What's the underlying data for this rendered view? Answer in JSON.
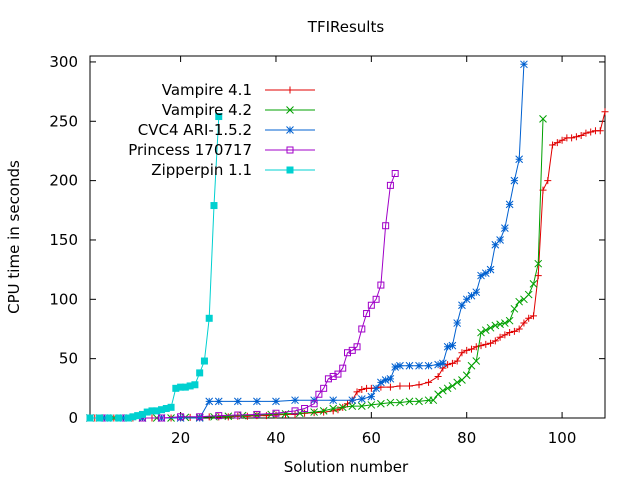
{
  "chart_data": {
    "type": "line",
    "title": "TFIResults",
    "xlabel": "Solution number",
    "ylabel": "CPU time in seconds",
    "xlim": [
      1,
      109
    ],
    "ylim": [
      0,
      305
    ],
    "xticks": [
      20,
      40,
      60,
      80,
      100
    ],
    "yticks": [
      0,
      50,
      100,
      150,
      200,
      250,
      300
    ],
    "xtick_labels": [
      "20",
      "40",
      "60",
      "80",
      "100"
    ],
    "ytick_labels": [
      "0",
      "50",
      "100",
      "150",
      "200",
      "250",
      "300"
    ],
    "legend_position": "top-left",
    "grid": false,
    "series": [
      {
        "name": "Vampire 4.1",
        "color": "#e00000",
        "marker": "plus",
        "points": [
          [
            1,
            0
          ],
          [
            2,
            0
          ],
          [
            4,
            0
          ],
          [
            6,
            0
          ],
          [
            8,
            0
          ],
          [
            10,
            0
          ],
          [
            12,
            0
          ],
          [
            14,
            0
          ],
          [
            16,
            0
          ],
          [
            18,
            0
          ],
          [
            20,
            0.5
          ],
          [
            22,
            0.5
          ],
          [
            24,
            0.5
          ],
          [
            26,
            1
          ],
          [
            28,
            1
          ],
          [
            30,
            1
          ],
          [
            32,
            1.5
          ],
          [
            34,
            1.5
          ],
          [
            36,
            2
          ],
          [
            38,
            2
          ],
          [
            40,
            2.5
          ],
          [
            42,
            3
          ],
          [
            44,
            3
          ],
          [
            46,
            4
          ],
          [
            48,
            4.5
          ],
          [
            50,
            5
          ],
          [
            52,
            6
          ],
          [
            53,
            7
          ],
          [
            54,
            9
          ],
          [
            55,
            12
          ],
          [
            56,
            15
          ],
          [
            57,
            22
          ],
          [
            58,
            24
          ],
          [
            59,
            25
          ],
          [
            60,
            25
          ],
          [
            62,
            26
          ],
          [
            64,
            26
          ],
          [
            66,
            27
          ],
          [
            68,
            27
          ],
          [
            70,
            28
          ],
          [
            72,
            30
          ],
          [
            74,
            35
          ],
          [
            75,
            42
          ],
          [
            76,
            45
          ],
          [
            77,
            46
          ],
          [
            78,
            48
          ],
          [
            79,
            55
          ],
          [
            80,
            57
          ],
          [
            81,
            58
          ],
          [
            82,
            60
          ],
          [
            83,
            61
          ],
          [
            84,
            62
          ],
          [
            85,
            63
          ],
          [
            86,
            65
          ],
          [
            87,
            68
          ],
          [
            88,
            70
          ],
          [
            89,
            72
          ],
          [
            90,
            73
          ],
          [
            91,
            75
          ],
          [
            92,
            80
          ],
          [
            93,
            84
          ],
          [
            94,
            86
          ],
          [
            95,
            120
          ],
          [
            96,
            192
          ],
          [
            97,
            200
          ],
          [
            98,
            230
          ],
          [
            99,
            232
          ],
          [
            100,
            234
          ],
          [
            101,
            236
          ],
          [
            102,
            236
          ],
          [
            103,
            237
          ],
          [
            104,
            238
          ],
          [
            105,
            240
          ],
          [
            106,
            241
          ],
          [
            107,
            242
          ],
          [
            108,
            242
          ],
          [
            109,
            258
          ]
        ]
      },
      {
        "name": "Vampire 4.2",
        "color": "#00a000",
        "marker": "cross",
        "points": [
          [
            1,
            0
          ],
          [
            3,
            0
          ],
          [
            6,
            0
          ],
          [
            9,
            0
          ],
          [
            12,
            0
          ],
          [
            15,
            0
          ],
          [
            18,
            0
          ],
          [
            21,
            0.5
          ],
          [
            24,
            0.5
          ],
          [
            27,
            1
          ],
          [
            30,
            1.5
          ],
          [
            33,
            2
          ],
          [
            36,
            2.5
          ],
          [
            39,
            3
          ],
          [
            42,
            3.5
          ],
          [
            45,
            4
          ],
          [
            48,
            5
          ],
          [
            50,
            6
          ],
          [
            52,
            8
          ],
          [
            54,
            9
          ],
          [
            56,
            10
          ],
          [
            58,
            10
          ],
          [
            60,
            11
          ],
          [
            62,
            12
          ],
          [
            64,
            13
          ],
          [
            66,
            13
          ],
          [
            68,
            14
          ],
          [
            70,
            14
          ],
          [
            72,
            15
          ],
          [
            73,
            15
          ],
          [
            74,
            20
          ],
          [
            75,
            23
          ],
          [
            76,
            25
          ],
          [
            77,
            27
          ],
          [
            78,
            30
          ],
          [
            79,
            32
          ],
          [
            80,
            36
          ],
          [
            81,
            44
          ],
          [
            82,
            48
          ],
          [
            83,
            72
          ],
          [
            84,
            74
          ],
          [
            85,
            76
          ],
          [
            86,
            78
          ],
          [
            87,
            79
          ],
          [
            88,
            80
          ],
          [
            89,
            82
          ],
          [
            90,
            92
          ],
          [
            91,
            98
          ],
          [
            92,
            100
          ],
          [
            93,
            104
          ],
          [
            94,
            113
          ],
          [
            95,
            130
          ],
          [
            96,
            252
          ]
        ]
      },
      {
        "name": "CVC4 ARI-1.5.2",
        "color": "#0060d0",
        "marker": "star",
        "points": [
          [
            1,
            0
          ],
          [
            4,
            0
          ],
          [
            8,
            0
          ],
          [
            12,
            0
          ],
          [
            16,
            0
          ],
          [
            20,
            0
          ],
          [
            24,
            0
          ],
          [
            26,
            14
          ],
          [
            28,
            14
          ],
          [
            32,
            14
          ],
          [
            36,
            14
          ],
          [
            40,
            14
          ],
          [
            44,
            15
          ],
          [
            48,
            15
          ],
          [
            52,
            15
          ],
          [
            56,
            15
          ],
          [
            58,
            16
          ],
          [
            60,
            18
          ],
          [
            61,
            25
          ],
          [
            62,
            30
          ],
          [
            63,
            32
          ],
          [
            64,
            33
          ],
          [
            65,
            43
          ],
          [
            66,
            44
          ],
          [
            68,
            44
          ],
          [
            70,
            44
          ],
          [
            72,
            44
          ],
          [
            74,
            45
          ],
          [
            75,
            46
          ],
          [
            76,
            60
          ],
          [
            77,
            61
          ],
          [
            78,
            80
          ],
          [
            79,
            95
          ],
          [
            80,
            100
          ],
          [
            81,
            103
          ],
          [
            82,
            106
          ],
          [
            83,
            120
          ],
          [
            84,
            122
          ],
          [
            85,
            125
          ],
          [
            86,
            146
          ],
          [
            87,
            150
          ],
          [
            88,
            160
          ],
          [
            89,
            180
          ],
          [
            90,
            200
          ],
          [
            91,
            218
          ],
          [
            92,
            298
          ]
        ]
      },
      {
        "name": "Princess 170717",
        "color": "#a000c8",
        "marker": "square",
        "points": [
          [
            1,
            0
          ],
          [
            4,
            0
          ],
          [
            8,
            0
          ],
          [
            12,
            0
          ],
          [
            16,
            0
          ],
          [
            20,
            1
          ],
          [
            24,
            1
          ],
          [
            28,
            2
          ],
          [
            32,
            2.5
          ],
          [
            36,
            3
          ],
          [
            40,
            4
          ],
          [
            44,
            6
          ],
          [
            46,
            8
          ],
          [
            48,
            12
          ],
          [
            49,
            20
          ],
          [
            50,
            25
          ],
          [
            51,
            33
          ],
          [
            52,
            35
          ],
          [
            53,
            37
          ],
          [
            54,
            42
          ],
          [
            55,
            55
          ],
          [
            56,
            57
          ],
          [
            57,
            60
          ],
          [
            58,
            75
          ],
          [
            59,
            88
          ],
          [
            60,
            95
          ],
          [
            61,
            100
          ],
          [
            62,
            112
          ],
          [
            63,
            162
          ],
          [
            64,
            196
          ],
          [
            65,
            206
          ]
        ]
      },
      {
        "name": "Zipperpin 1.1",
        "color": "#00d0d0",
        "marker": "filled-square",
        "points": [
          [
            1,
            0
          ],
          [
            3,
            0
          ],
          [
            5,
            0
          ],
          [
            7,
            0
          ],
          [
            9,
            0
          ],
          [
            10,
            1
          ],
          [
            11,
            2
          ],
          [
            12,
            3
          ],
          [
            13,
            5
          ],
          [
            14,
            6
          ],
          [
            15,
            6
          ],
          [
            16,
            7
          ],
          [
            17,
            8
          ],
          [
            18,
            9
          ],
          [
            19,
            25
          ],
          [
            20,
            26
          ],
          [
            21,
            26
          ],
          [
            22,
            27
          ],
          [
            23,
            28
          ],
          [
            24,
            38
          ],
          [
            25,
            48
          ],
          [
            26,
            84
          ],
          [
            27,
            179
          ],
          [
            28,
            254
          ]
        ]
      }
    ]
  }
}
